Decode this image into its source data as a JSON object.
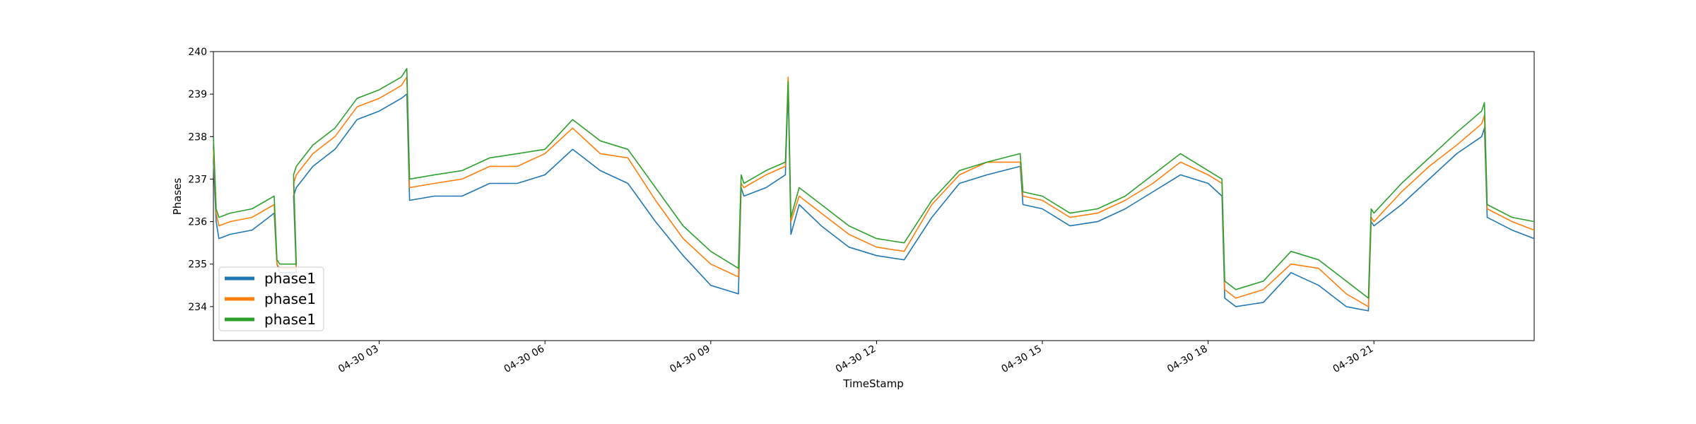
{
  "chart_data": {
    "type": "line",
    "title": "",
    "xlabel": "TimeStamp",
    "ylabel": "Phases",
    "x_unit": "hours since 04-30 00:00",
    "xlim": [
      0.0,
      23.9
    ],
    "ylim": [
      233.2,
      240.0
    ],
    "yticks": [
      234,
      235,
      236,
      237,
      238,
      239,
      240
    ],
    "xticks": [
      {
        "value": 3,
        "label": "04-30 03"
      },
      {
        "value": 6,
        "label": "04-30 06"
      },
      {
        "value": 9,
        "label": "04-30 09"
      },
      {
        "value": 12,
        "label": "04-30 12"
      },
      {
        "value": 15,
        "label": "04-30 15"
      },
      {
        "value": 18,
        "label": "04-30 18"
      },
      {
        "value": 21,
        "label": "04-30 21"
      }
    ],
    "grid": false,
    "legend_position": "lower-left",
    "x": [
      0.0,
      0.05,
      0.1,
      0.3,
      0.7,
      1.1,
      1.15,
      1.2,
      1.5,
      1.45,
      1.5,
      1.8,
      2.2,
      2.6,
      3.0,
      3.4,
      3.5,
      3.55,
      4.0,
      4.5,
      5.0,
      5.5,
      6.0,
      6.5,
      7.0,
      7.5,
      8.0,
      8.5,
      9.0,
      9.5,
      9.55,
      9.6,
      10.0,
      10.35,
      10.4,
      10.45,
      10.6,
      11.0,
      11.5,
      12.0,
      12.5,
      13.0,
      13.5,
      14.0,
      14.6,
      14.65,
      15.0,
      15.5,
      16.0,
      16.5,
      17.0,
      17.5,
      18.0,
      18.25,
      18.3,
      18.5,
      19.0,
      19.5,
      20.0,
      20.5,
      20.9,
      20.95,
      21.0,
      21.5,
      22.0,
      22.5,
      22.95,
      23.0,
      23.05,
      23.5,
      23.9
    ],
    "series": [
      {
        "name": "phase1",
        "color": "#1f77b4",
        "values": [
          237.4,
          236.0,
          235.6,
          235.7,
          235.8,
          236.2,
          235.0,
          234.8,
          234.8,
          236.6,
          236.8,
          237.3,
          237.7,
          238.4,
          238.6,
          238.9,
          239.0,
          236.5,
          236.6,
          236.6,
          236.9,
          236.9,
          237.1,
          237.7,
          237.2,
          236.9,
          236.0,
          235.2,
          234.5,
          234.3,
          236.8,
          236.6,
          236.8,
          237.1,
          239.2,
          235.7,
          236.4,
          235.9,
          235.4,
          235.2,
          235.1,
          236.1,
          236.9,
          237.1,
          237.3,
          236.4,
          236.3,
          235.9,
          236.0,
          236.3,
          236.7,
          237.1,
          236.9,
          236.6,
          234.2,
          234.0,
          234.1,
          234.8,
          234.5,
          234.0,
          233.9,
          236.0,
          235.9,
          236.4,
          237.0,
          237.6,
          238.0,
          238.2,
          236.1,
          235.8,
          235.6
        ]
      },
      {
        "name": "phase1",
        "color": "#ff7f0e",
        "values": [
          237.7,
          236.2,
          235.9,
          236.0,
          236.1,
          236.4,
          235.0,
          234.9,
          234.9,
          236.9,
          237.1,
          237.6,
          238.0,
          238.7,
          238.9,
          239.2,
          239.4,
          236.8,
          236.9,
          237.0,
          237.3,
          237.3,
          237.6,
          238.2,
          237.6,
          237.5,
          236.5,
          235.6,
          235.0,
          234.7,
          236.9,
          236.8,
          237.1,
          237.3,
          239.4,
          236.0,
          236.6,
          236.2,
          235.7,
          235.4,
          235.3,
          236.4,
          237.1,
          237.4,
          237.4,
          236.6,
          236.5,
          236.1,
          236.2,
          236.5,
          236.9,
          237.4,
          237.1,
          236.9,
          234.4,
          234.2,
          234.4,
          235.0,
          234.9,
          234.3,
          234.0,
          236.1,
          236.0,
          236.7,
          237.3,
          237.8,
          238.3,
          238.5,
          236.3,
          236.0,
          235.8
        ]
      },
      {
        "name": "phase1",
        "color": "#2ca02c",
        "values": [
          238.0,
          236.3,
          236.1,
          236.2,
          236.3,
          236.6,
          235.1,
          235.0,
          235.0,
          237.1,
          237.3,
          237.8,
          238.2,
          238.9,
          239.1,
          239.4,
          239.6,
          237.0,
          237.1,
          237.2,
          237.5,
          237.6,
          237.7,
          238.4,
          237.9,
          237.7,
          236.8,
          235.9,
          235.3,
          234.9,
          237.1,
          236.9,
          237.2,
          237.4,
          239.3,
          236.1,
          236.8,
          236.4,
          235.9,
          235.6,
          235.5,
          236.5,
          237.2,
          237.4,
          237.6,
          236.7,
          236.6,
          236.2,
          236.3,
          236.6,
          237.1,
          237.6,
          237.2,
          237.0,
          234.6,
          234.4,
          234.6,
          235.3,
          235.1,
          234.6,
          234.2,
          236.3,
          236.2,
          236.9,
          237.5,
          238.1,
          238.6,
          238.8,
          236.4,
          236.1,
          236.0
        ]
      }
    ]
  }
}
